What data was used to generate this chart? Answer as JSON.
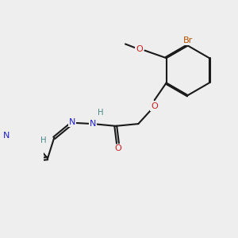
{
  "bg_color": "#eeeeee",
  "bond_color": "#1a1a1a",
  "bond_width": 1.5,
  "dbo": 0.06,
  "atom_colors": {
    "C": "#1a1a1a",
    "N": "#2020cc",
    "O": "#cc2020",
    "Br": "#b05000",
    "H": "#4a8888"
  },
  "font_size": 8.0
}
